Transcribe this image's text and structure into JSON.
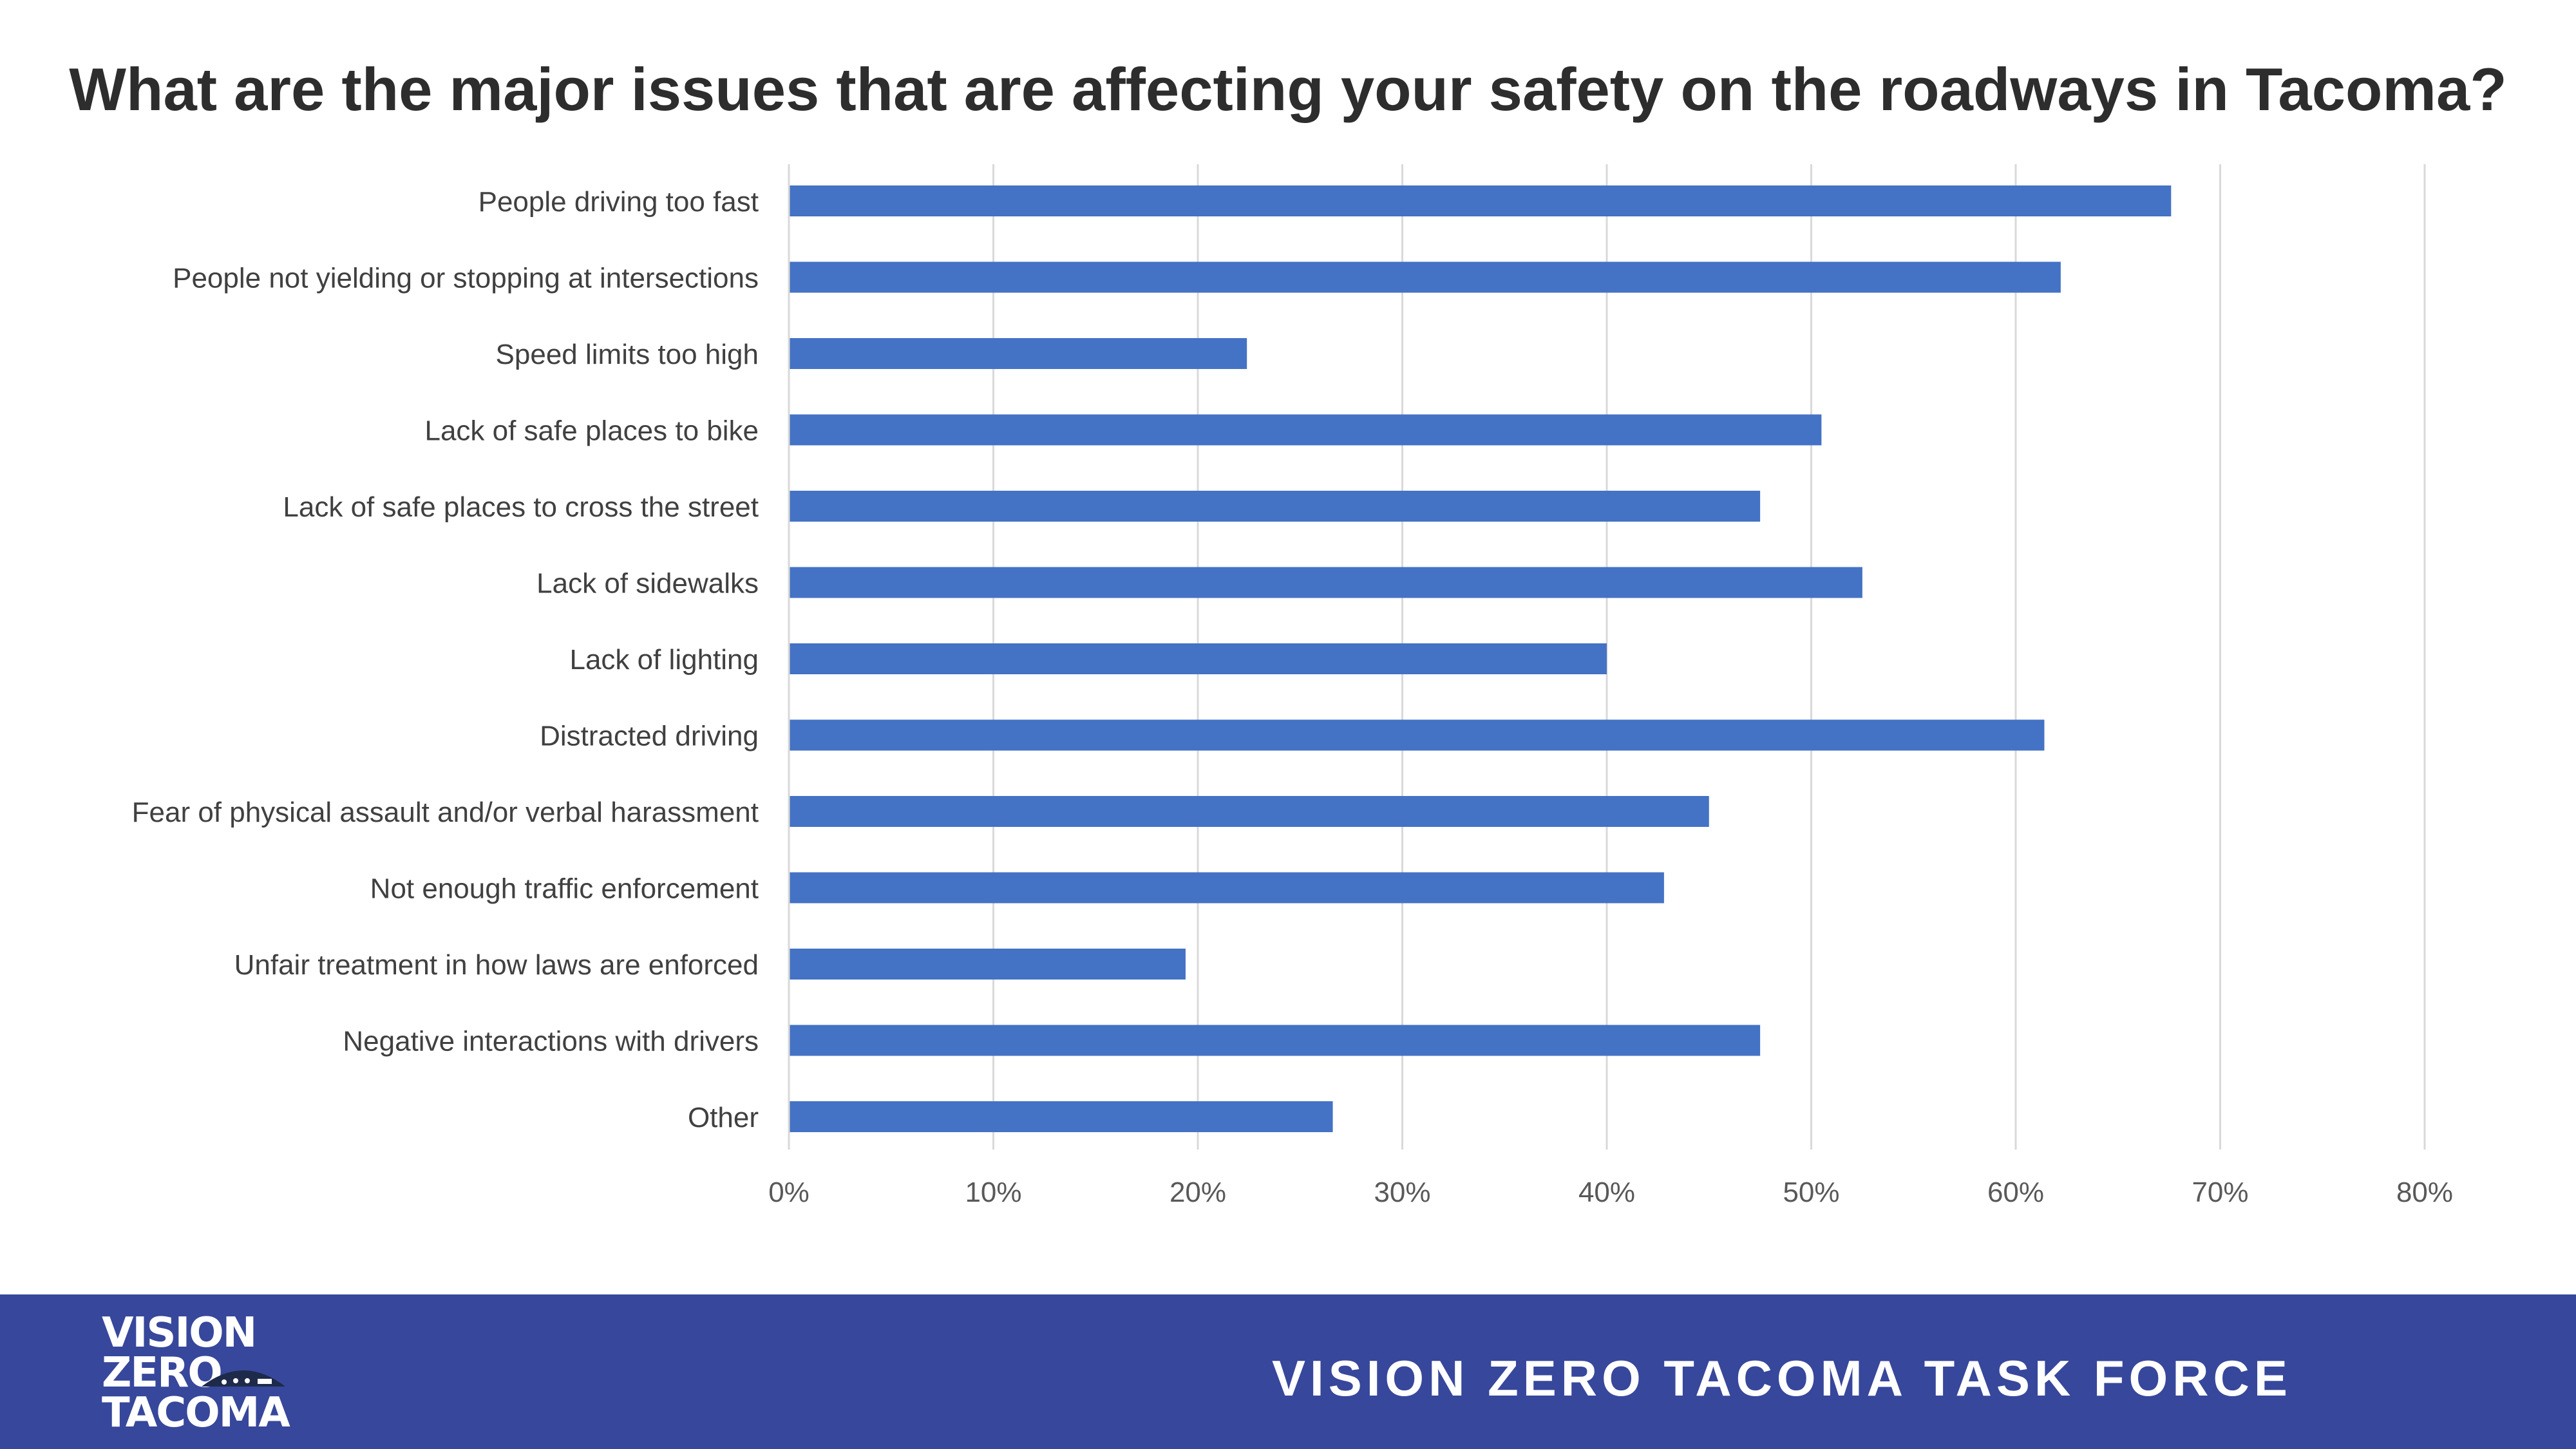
{
  "slide": {
    "title": "What are the major issues that are affecting your safety on the roadways in Tacoma?",
    "footer_text": "VISION ZERO TACOMA TASK FORCE",
    "logo": {
      "line1": "VISION",
      "line2": "ZERO",
      "line3": "TACOMA"
    }
  },
  "colors": {
    "bar": "#4472c4",
    "gridline": "#d9d9d9",
    "label": "#404040",
    "footer_bg": "#37479b"
  },
  "chart_data": {
    "type": "bar",
    "orientation": "horizontal",
    "categories": [
      "People driving too fast",
      "People not yielding or stopping at intersections",
      "Speed limits too high",
      "Lack of safe places to bike",
      "Lack of safe places to cross the street",
      "Lack of sidewalks",
      "Lack of lighting",
      "Distracted driving",
      "Fear of physical assault and/or verbal harassment",
      "Not enough traffic enforcement",
      "Unfair treatment in how laws are enforced",
      "Negative interactions with drivers",
      "Other"
    ],
    "values": [
      67.6,
      62.2,
      22.4,
      50.5,
      47.5,
      52.5,
      40.0,
      61.4,
      45.0,
      42.8,
      19.4,
      47.5,
      26.6
    ],
    "xlim": [
      0,
      80
    ],
    "ticks": [
      "0%",
      "10%",
      "20%",
      "30%",
      "40%",
      "50%",
      "60%",
      "70%",
      "80%"
    ],
    "grid": true,
    "legend": "none",
    "xlabel": "",
    "ylabel": ""
  }
}
